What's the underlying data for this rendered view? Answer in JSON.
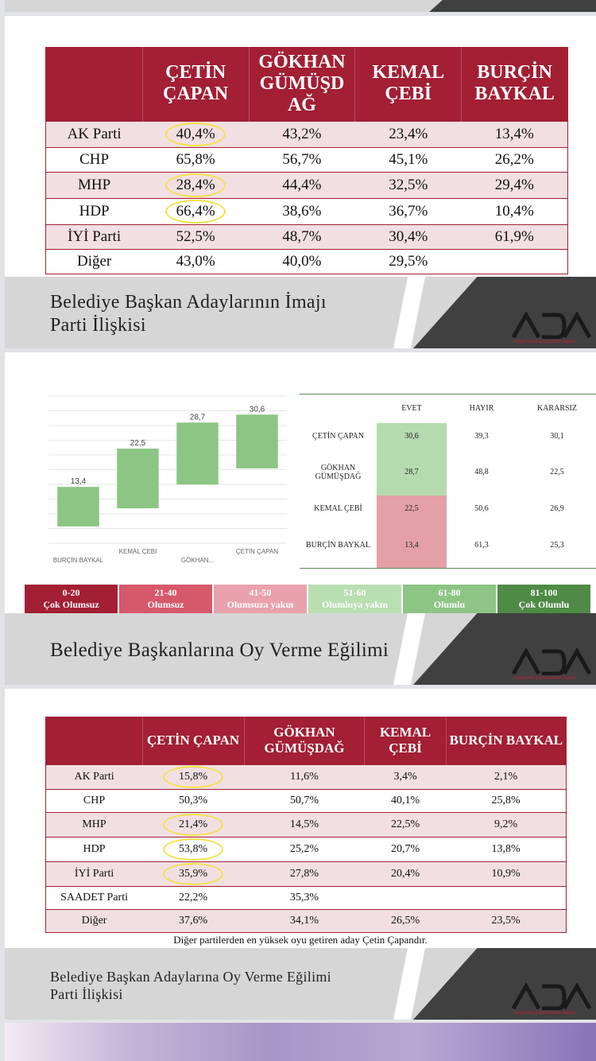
{
  "slide1": {
    "columns": [
      "",
      "ÇETİN ÇAPAN",
      "GÖKHAN GÜMÜŞD AĞ",
      "KEMAL ÇEBİ",
      "BURÇİN BAYKAL"
    ],
    "rows": [
      {
        "party": "AK Parti",
        "values": [
          "40,4%",
          "43,2%",
          "23,4%",
          "13,4%"
        ],
        "hl": true
      },
      {
        "party": "CHP",
        "values": [
          "65,8%",
          "56,7%",
          "45,1%",
          "26,2%"
        ],
        "hl": false
      },
      {
        "party": "MHP",
        "values": [
          "28,4%",
          "44,4%",
          "32,5%",
          "29,4%"
        ],
        "hl": true
      },
      {
        "party": "HDP",
        "values": [
          "66,4%",
          "38,6%",
          "36,7%",
          "10,4%"
        ],
        "hl": true
      },
      {
        "party": "İYİ Parti",
        "values": [
          "52,5%",
          "48,7%",
          "30,4%",
          "61,9%"
        ],
        "hl": false
      },
      {
        "party": "Diğer",
        "values": [
          "43,0%",
          "40,0%",
          "29,5%",
          ""
        ],
        "hl": false
      }
    ],
    "banner_line1": "Belediye Başkan Adaylarının İmajı",
    "banner_line2": "Parti İlişkisi"
  },
  "slide2": {
    "chart_data": {
      "type": "bar",
      "categories": [
        "BURÇİN BAYKAL",
        "KEMAL ÇEBİ",
        "GÖKHAN...",
        "ÇETİN ÇAPAN"
      ],
      "values": [
        13.4,
        22.5,
        28.7,
        30.6
      ],
      "value_labels": [
        "13,4",
        "22,5",
        "28,7",
        "30,6"
      ],
      "bar_color": "#8cc584",
      "ylim": [
        0,
        35
      ]
    },
    "table": {
      "headers": [
        "",
        "EVET",
        "HAYIR",
        "KARARSIZ"
      ],
      "rows": [
        {
          "name": "ÇETİN ÇAPAN",
          "evet": "30,6",
          "hayir": "39,3",
          "kararsiz": "30,1",
          "color": "#b5dab0"
        },
        {
          "name": "GÖKHAN GÜMÜŞDAĞ",
          "evet": "28,7",
          "hayir": "48,8",
          "kararsiz": "22,5",
          "color": "#b5dab0"
        },
        {
          "name": "KEMAL ÇEBİ",
          "evet": "22,5",
          "hayir": "50,6",
          "kararsiz": "26,9",
          "color": "#e3a0a7"
        },
        {
          "name": "BURÇİN BAYKAL",
          "evet": "13,4",
          "hayir": "61,3",
          "kararsiz": "25,3",
          "color": "#e3a0a7"
        }
      ]
    },
    "legend": [
      {
        "range": "0-20",
        "label": "Çok Olumsuz",
        "color": "#a21f34"
      },
      {
        "range": "21-40",
        "label": "Olumsuz",
        "color": "#d6596b"
      },
      {
        "range": "41-50",
        "label": "Olumsuza yakın",
        "color": "#e9a2ab"
      },
      {
        "range": "51-60",
        "label": "Olumluya yakın",
        "color": "#b9deb2"
      },
      {
        "range": "61-80",
        "label": "Olumlu",
        "color": "#8cc584"
      },
      {
        "range": "81-100",
        "label": "Çok Olumlu",
        "color": "#4f8a46"
      }
    ],
    "banner_title": "Belediye Başkanlarına Oy Verme Eğilimi"
  },
  "slide3": {
    "columns": [
      "",
      "ÇETİN ÇAPAN",
      "GÖKHAN GÜMÜŞDAĞ",
      "KEMAL ÇEBİ",
      "BURÇİN BAYKAL"
    ],
    "rows": [
      {
        "party": "AK Parti",
        "values": [
          "15,8%",
          "11,6%",
          "3,4%",
          "2,1%"
        ],
        "hl": true
      },
      {
        "party": "CHP",
        "values": [
          "50,3%",
          "50,7%",
          "40,1%",
          "25,8%"
        ],
        "hl": false
      },
      {
        "party": "MHP",
        "values": [
          "21,4%",
          "14,5%",
          "22,5%",
          "9,2%"
        ],
        "hl": true
      },
      {
        "party": "HDP",
        "values": [
          "53,8%",
          "25,2%",
          "20,7%",
          "13,8%"
        ],
        "hl": true
      },
      {
        "party": "İYİ Parti",
        "values": [
          "35,9%",
          "27,8%",
          "20,4%",
          "10,9%"
        ],
        "hl": true
      },
      {
        "party": "SAADET Parti",
        "values": [
          "22,2%",
          "35,3%",
          "",
          ""
        ],
        "hl": false
      },
      {
        "party": "Diğer",
        "values": [
          "37,6%",
          "34,1%",
          "26,5%",
          "23,5%"
        ],
        "hl": false
      }
    ],
    "note": "Diğer partilerden en yüksek oyu getiren aday Çetin Çapandır.",
    "banner_line1": "Belediye Başkan Adaylarına Oy Verme Eğilimi",
    "banner_line2": "Parti İlişkisi"
  },
  "logo": {
    "text": "ADA",
    "sub": "Araştırma Danışmanlık Ajansı"
  }
}
